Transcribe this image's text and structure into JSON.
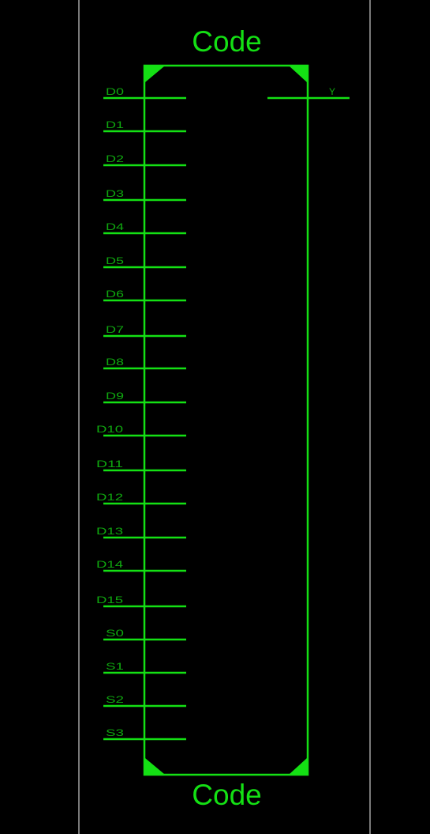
{
  "block": {
    "title_top": "Code",
    "title_bottom": "Code"
  },
  "inputs": [
    {
      "label": "D0"
    },
    {
      "label": "D1"
    },
    {
      "label": "D2"
    },
    {
      "label": "D3"
    },
    {
      "label": "D4"
    },
    {
      "label": "D5"
    },
    {
      "label": "D6"
    },
    {
      "label": "D7"
    },
    {
      "label": "D8"
    },
    {
      "label": "D9"
    },
    {
      "label": "D10"
    },
    {
      "label": "D11"
    },
    {
      "label": "D12"
    },
    {
      "label": "D13"
    },
    {
      "label": "D14"
    },
    {
      "label": "D15"
    },
    {
      "label": "S0"
    },
    {
      "label": "S1"
    },
    {
      "label": "S2"
    },
    {
      "label": "S3"
    }
  ],
  "outputs": [
    {
      "label": "Y"
    }
  ],
  "colors": {
    "background": "#000000",
    "wire": "#14e014",
    "label": "#0fa80f",
    "frame": "#7a7a7a"
  }
}
